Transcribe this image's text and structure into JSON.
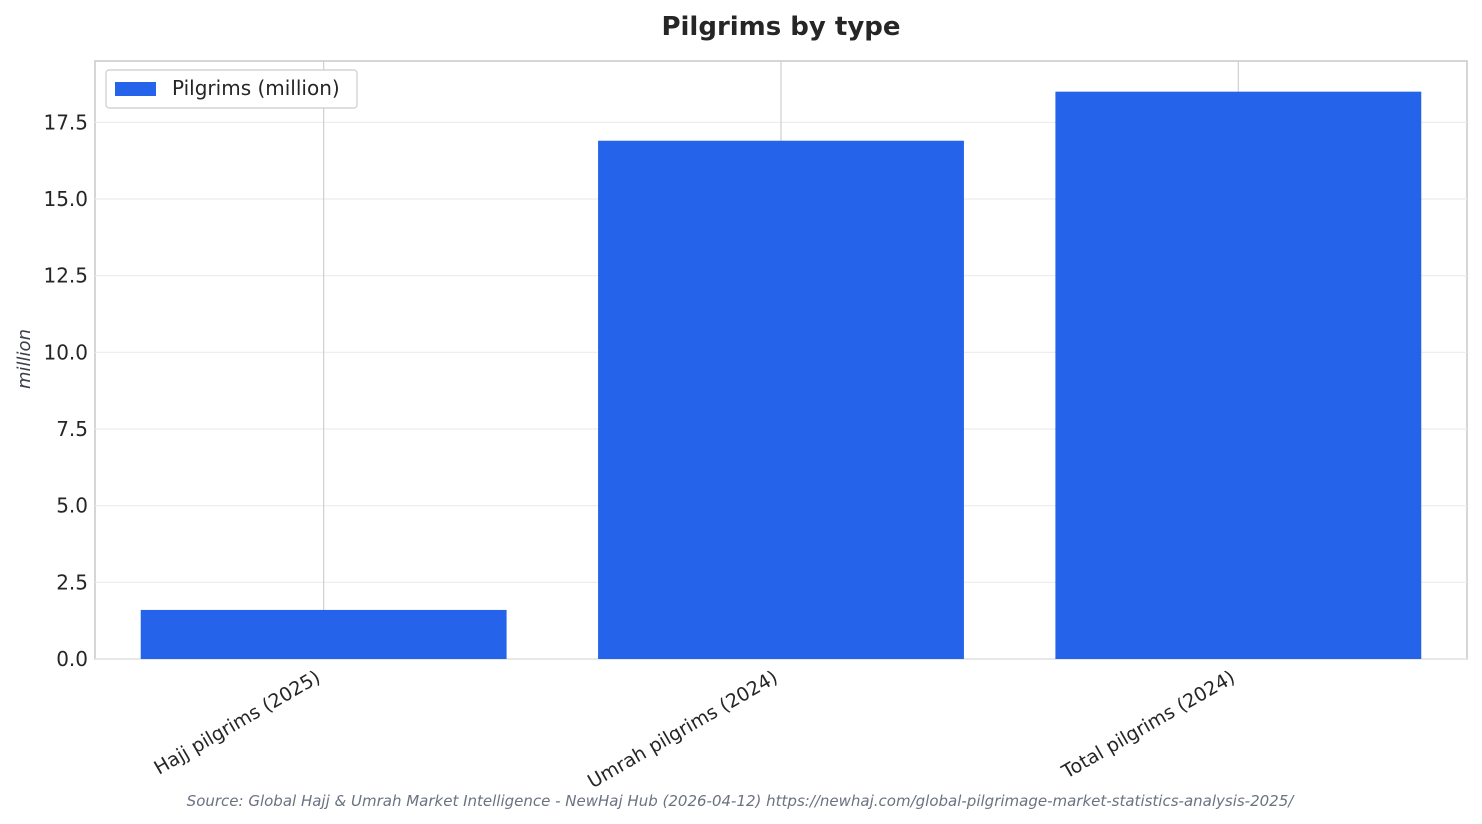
{
  "chart_data": {
    "type": "bar",
    "title": "Pilgrims by type",
    "xlabel": "",
    "ylabel": "million",
    "categories": [
      "Hajj pilgrims (2025)",
      "Umrah pilgrims (2024)",
      "Total pilgrims (2024)"
    ],
    "series": [
      {
        "name": "Pilgrims (million)",
        "values": [
          1.6,
          16.9,
          18.5
        ],
        "color": "#2563eb"
      }
    ],
    "ylim": [
      0,
      19.5
    ],
    "yticks": [
      0.0,
      2.5,
      5.0,
      7.5,
      10.0,
      12.5,
      15.0,
      17.5
    ],
    "ytick_labels": [
      "0.0",
      "2.5",
      "5.0",
      "7.5",
      "10.0",
      "12.5",
      "15.0",
      "17.5"
    ],
    "grid": true,
    "legend_position": "top-left",
    "source": "Source: Global Hajj & Umrah Market Intelligence - NewHaj Hub (2026-04-12) https://newhaj.com/global-pilgrimage-market-statistics-analysis-2025/"
  }
}
